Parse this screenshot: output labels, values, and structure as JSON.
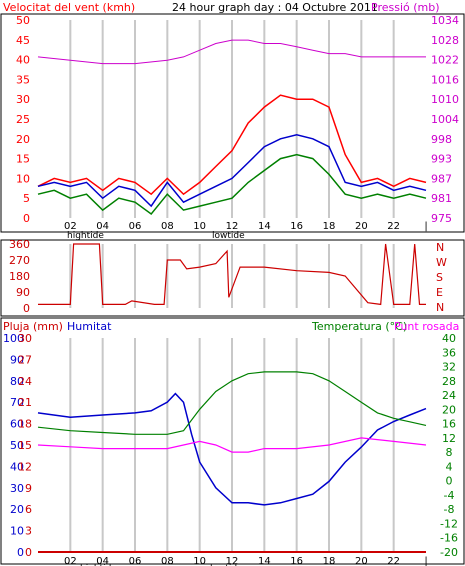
{
  "top": {
    "left_title": "Velocitat del vent (kmh)",
    "center_title": "24 hour graph day : 04 Octubre 2011",
    "right_title": "Pressió (mb)"
  },
  "mid": {
    "compass": [
      "N",
      "W",
      "S",
      "E",
      "N"
    ]
  },
  "bottom": {
    "rain_label": "Pluja (mm)",
    "hum_label": "Humitat",
    "temp_label": "Temperatura (°C)",
    "dew_label": "Punt rosada"
  },
  "tide": {
    "hightide": "hightide",
    "lowtide": "lowtide"
  },
  "colors": {
    "wind_speed": "#ff0000",
    "wind_avg": "#0000cc",
    "wind_min": "#008000",
    "pressure": "#cc00cc",
    "wind_dir": "#cc0000",
    "humidity": "#0000cc",
    "temperature": "#008000",
    "dewpoint": "#ff00ff",
    "rain": "#cc0000",
    "grid": "#c8c8c8"
  },
  "chart_data": [
    {
      "type": "line",
      "x_ticks": [
        "02",
        "04",
        "06",
        "08",
        "10",
        "12",
        "14",
        "16",
        "18",
        "20",
        "22",
        "|"
      ],
      "yleft_ticks": [
        "0",
        "5",
        "10",
        "15",
        "20",
        "25",
        "30",
        "35",
        "40",
        "45",
        "50"
      ],
      "ylim_left": [
        0,
        50
      ],
      "yright_ticks": [
        "975",
        "981",
        "987",
        "993",
        "998",
        "1004",
        "1010",
        "1016",
        "1022",
        "1028",
        "1034"
      ],
      "series": [
        {
          "key": "wind_gust",
          "x": [
            0,
            1,
            2,
            3,
            4,
            5,
            6,
            7,
            8,
            9,
            10,
            11,
            12,
            13,
            14,
            15,
            16,
            17,
            18,
            19,
            20,
            21,
            22,
            23,
            24
          ],
          "values": [
            8,
            10,
            9,
            10,
            7,
            10,
            9,
            6,
            10,
            6,
            9,
            13,
            17,
            24,
            28,
            31,
            30,
            30,
            28,
            16,
            9,
            10,
            8,
            10,
            9
          ]
        },
        {
          "key": "wind_avg",
          "x": [
            0,
            1,
            2,
            3,
            4,
            5,
            6,
            7,
            8,
            9,
            10,
            11,
            12,
            13,
            14,
            15,
            16,
            17,
            18,
            19,
            20,
            21,
            22,
            23,
            24
          ],
          "values": [
            8,
            9,
            8,
            9,
            5,
            8,
            7,
            3,
            9,
            4,
            6,
            8,
            10,
            14,
            18,
            20,
            21,
            20,
            18,
            9,
            8,
            9,
            7,
            8,
            7
          ]
        },
        {
          "key": "wind_min",
          "x": [
            0,
            1,
            2,
            3,
            4,
            5,
            6,
            7,
            8,
            9,
            10,
            11,
            12,
            13,
            14,
            15,
            16,
            17,
            18,
            19,
            20,
            21,
            22,
            23,
            24
          ],
          "values": [
            6,
            7,
            5,
            6,
            2,
            5,
            4,
            1,
            6,
            2,
            3,
            4,
            5,
            9,
            12,
            15,
            16,
            15,
            11,
            6,
            5,
            6,
            5,
            6,
            5
          ]
        },
        {
          "key": "pressure",
          "axis": "right",
          "x": [
            0,
            2,
            4,
            6,
            8,
            9,
            10,
            11,
            12,
            13,
            14,
            15,
            16,
            17,
            18,
            19,
            20,
            22,
            24
          ],
          "values": [
            1023,
            1022,
            1021,
            1021,
            1022,
            1023,
            1025,
            1027,
            1028,
            1028,
            1027,
            1027,
            1026,
            1025,
            1024,
            1024,
            1023,
            1023,
            1023
          ]
        }
      ]
    },
    {
      "type": "line",
      "yticks": [
        "0",
        "90",
        "180",
        "270",
        "360"
      ],
      "ylim": [
        0,
        360
      ],
      "series": [
        {
          "key": "wind_direction",
          "x": [
            0,
            2,
            2.2,
            3.8,
            4,
            5.4,
            5.8,
            7.2,
            7.8,
            8.0,
            8.8,
            9.2,
            10,
            11,
            11.7,
            11.8,
            12.5,
            14,
            16,
            18,
            19,
            20.4,
            21.2,
            21.5,
            22,
            23,
            23.3,
            23.6,
            24
          ],
          "values": [
            20,
            20,
            360,
            360,
            20,
            20,
            40,
            20,
            20,
            270,
            270,
            220,
            230,
            250,
            320,
            60,
            230,
            230,
            210,
            200,
            180,
            30,
            20,
            360,
            20,
            20,
            360,
            20,
            20
          ]
        }
      ]
    },
    {
      "type": "line",
      "yleft_ticks": [
        "0",
        "10",
        "20",
        "30",
        "40",
        "50",
        "60",
        "70",
        "80",
        "90",
        "100"
      ],
      "yleft2_ticks": [
        "0",
        "3",
        "6",
        "9",
        "12",
        "15",
        "18",
        "21",
        "24",
        "27",
        "30"
      ],
      "yright_ticks": [
        "-20",
        "-16",
        "-12",
        "-8",
        "-4",
        "0",
        "4",
        "8",
        "12",
        "16",
        "20",
        "24",
        "28",
        "32",
        "36",
        "40"
      ],
      "series": [
        {
          "key": "humidity",
          "x": [
            0,
            2,
            4,
            6,
            7,
            8,
            8.5,
            9,
            9.5,
            10,
            11,
            12,
            13,
            14,
            15,
            16,
            17,
            18,
            19,
            20,
            21,
            22,
            23,
            24
          ],
          "values": [
            65,
            63,
            64,
            65,
            66,
            70,
            74,
            70,
            55,
            42,
            30,
            23,
            23,
            22,
            23,
            25,
            27,
            33,
            42,
            49,
            57,
            61,
            64,
            67
          ]
        },
        {
          "key": "temperature",
          "x": [
            0,
            2,
            4,
            6,
            8,
            9,
            10,
            11,
            12,
            13,
            14,
            15,
            16,
            17,
            18,
            19,
            20,
            21,
            22,
            23,
            24
          ],
          "values": [
            15,
            14,
            13.5,
            13,
            13,
            14,
            20,
            25,
            28,
            30,
            30.5,
            30.5,
            30.5,
            30,
            28,
            25,
            22,
            19,
            17.5,
            16.5,
            15.5
          ]
        },
        {
          "key": "dewpoint",
          "x": [
            0,
            2,
            4,
            6,
            8,
            9,
            10,
            11,
            12,
            13,
            14,
            16,
            18,
            20,
            22,
            24
          ],
          "values": [
            10,
            9.5,
            9,
            9,
            9,
            10,
            11,
            10,
            8,
            8,
            9,
            9,
            10,
            12,
            11,
            10
          ]
        },
        {
          "key": "rain",
          "x": [
            0,
            24
          ],
          "values": [
            0,
            0
          ]
        }
      ]
    }
  ]
}
